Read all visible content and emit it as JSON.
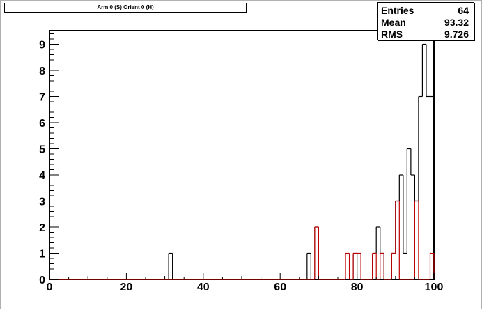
{
  "title": "Arm 0 (S) Orient 0 (H)",
  "stats": [
    {
      "label": "Entries",
      "value": "64"
    },
    {
      "label": "Mean",
      "value": "93.32"
    },
    {
      "label": "RMS",
      "value": "9.726"
    }
  ],
  "colors": {
    "black_series": "#000000",
    "red_series": "#c00000",
    "frame": "#000000"
  },
  "chart_data": {
    "type": "histogram",
    "title": "Arm 0 (S) Orient 0 (H)",
    "xlabel": "",
    "ylabel": "",
    "xlim": [
      0,
      100
    ],
    "ylim": [
      0,
      9.5
    ],
    "bin_width": 1,
    "x_ticks": [
      0,
      20,
      40,
      60,
      80,
      100
    ],
    "y_ticks": [
      0,
      1,
      2,
      3,
      4,
      5,
      6,
      7,
      8,
      9
    ],
    "grid": false,
    "series": [
      {
        "color": "#000000",
        "bins": [
          {
            "x": 31,
            "y": 1
          },
          {
            "x": 67,
            "y": 1
          },
          {
            "x": 69,
            "y": 2
          },
          {
            "x": 79,
            "y": 1
          },
          {
            "x": 84,
            "y": 1
          },
          {
            "x": 85,
            "y": 2
          },
          {
            "x": 86,
            "y": 1
          },
          {
            "x": 89,
            "y": 1
          },
          {
            "x": 90,
            "y": 3
          },
          {
            "x": 91,
            "y": 4
          },
          {
            "x": 92,
            "y": 1
          },
          {
            "x": 93,
            "y": 5
          },
          {
            "x": 94,
            "y": 4
          },
          {
            "x": 95,
            "y": 3
          },
          {
            "x": 96,
            "y": 7
          },
          {
            "x": 97,
            "y": 9
          },
          {
            "x": 98,
            "y": 7
          },
          {
            "x": 99,
            "y": 7
          }
        ]
      },
      {
        "color": "#c00000",
        "bins": [
          {
            "x": 69,
            "y": 2
          },
          {
            "x": 77,
            "y": 1
          },
          {
            "x": 79,
            "y": 1
          },
          {
            "x": 80,
            "y": 1
          },
          {
            "x": 84,
            "y": 1
          },
          {
            "x": 86,
            "y": 1
          },
          {
            "x": 89,
            "y": 1
          },
          {
            "x": 90,
            "y": 3
          },
          {
            "x": 95,
            "y": 3
          },
          {
            "x": 99,
            "y": 1
          }
        ]
      }
    ]
  }
}
